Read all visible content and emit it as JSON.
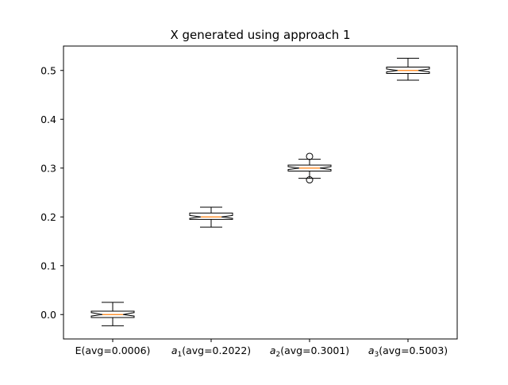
{
  "chart_data": {
    "type": "box",
    "title": "X generated using approach 1",
    "xlabel": "",
    "ylabel": "",
    "ylim": [
      -0.05,
      0.55
    ],
    "yticks": [
      0.0,
      0.1,
      0.2,
      0.3,
      0.4,
      0.5
    ],
    "ytick_labels": [
      "0.0",
      "0.1",
      "0.2",
      "0.3",
      "0.4",
      "0.5"
    ],
    "notched": true,
    "grid": false,
    "median_color": "#ff7f0e",
    "categories": [
      {
        "base": "E",
        "sub": "",
        "suffix": "(avg=0.0006)"
      },
      {
        "base": "a",
        "sub": "1",
        "suffix": "(avg=0.2022)"
      },
      {
        "base": "a",
        "sub": "2",
        "suffix": "(avg=0.3001)"
      },
      {
        "base": "a",
        "sub": "3",
        "suffix": "(avg=0.5003)"
      }
    ],
    "boxes": [
      {
        "whisker_low": -0.023,
        "q1": -0.006,
        "median": 0.0,
        "q3": 0.007,
        "whisker_high": 0.025,
        "notch_low": -0.003,
        "notch_high": 0.004,
        "fliers": []
      },
      {
        "whisker_low": 0.179,
        "q1": 0.195,
        "median": 0.2,
        "q3": 0.208,
        "whisker_high": 0.22,
        "notch_low": 0.197,
        "notch_high": 0.203,
        "fliers": []
      },
      {
        "whisker_low": 0.279,
        "q1": 0.294,
        "median": 0.3,
        "q3": 0.306,
        "whisker_high": 0.318,
        "notch_low": 0.297,
        "notch_high": 0.303,
        "fliers": [
          0.324,
          0.276
        ]
      },
      {
        "whisker_low": 0.48,
        "q1": 0.494,
        "median": 0.5,
        "q3": 0.507,
        "whisker_high": 0.525,
        "notch_low": 0.497,
        "notch_high": 0.503,
        "fliers": []
      }
    ]
  }
}
